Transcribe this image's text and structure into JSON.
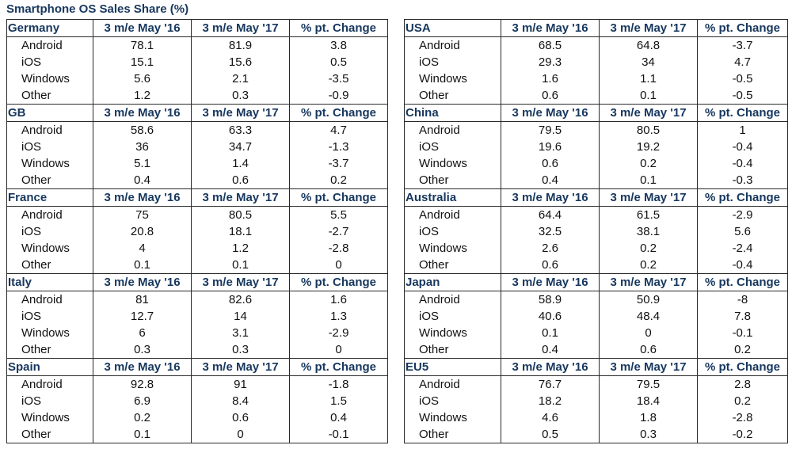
{
  "title": "Smartphone OS Sales Share (%)",
  "columns": [
    "3 m/e May '16",
    "3 m/e May '17",
    "% pt. Change"
  ],
  "left": [
    {
      "region": "Germany",
      "rows": [
        {
          "os": "Android",
          "v16": "78.1",
          "v17": "81.9",
          "chg": "3.8"
        },
        {
          "os": "iOS",
          "v16": "15.1",
          "v17": "15.6",
          "chg": "0.5"
        },
        {
          "os": "Windows",
          "v16": "5.6",
          "v17": "2.1",
          "chg": "-3.5"
        },
        {
          "os": "Other",
          "v16": "1.2",
          "v17": "0.3",
          "chg": "-0.9"
        }
      ]
    },
    {
      "region": "GB",
      "rows": [
        {
          "os": "Android",
          "v16": "58.6",
          "v17": "63.3",
          "chg": "4.7"
        },
        {
          "os": "iOS",
          "v16": "36",
          "v17": "34.7",
          "chg": "-1.3"
        },
        {
          "os": "Windows",
          "v16": "5.1",
          "v17": "1.4",
          "chg": "-3.7"
        },
        {
          "os": "Other",
          "v16": "0.4",
          "v17": "0.6",
          "chg": "0.2"
        }
      ]
    },
    {
      "region": "France",
      "rows": [
        {
          "os": "Android",
          "v16": "75",
          "v17": "80.5",
          "chg": "5.5"
        },
        {
          "os": "iOS",
          "v16": "20.8",
          "v17": "18.1",
          "chg": "-2.7"
        },
        {
          "os": "Windows",
          "v16": "4",
          "v17": "1.2",
          "chg": "-2.8"
        },
        {
          "os": "Other",
          "v16": "0.1",
          "v17": "0.1",
          "chg": "0"
        }
      ]
    },
    {
      "region": "Italy",
      "rows": [
        {
          "os": "Android",
          "v16": "81",
          "v17": "82.6",
          "chg": "1.6"
        },
        {
          "os": "iOS",
          "v16": "12.7",
          "v17": "14",
          "chg": "1.3"
        },
        {
          "os": "Windows",
          "v16": "6",
          "v17": "3.1",
          "chg": "-2.9"
        },
        {
          "os": "Other",
          "v16": "0.3",
          "v17": "0.3",
          "chg": "0"
        }
      ]
    },
    {
      "region": "Spain",
      "rows": [
        {
          "os": "Android",
          "v16": "92.8",
          "v17": "91",
          "chg": "-1.8"
        },
        {
          "os": "iOS",
          "v16": "6.9",
          "v17": "8.4",
          "chg": "1.5"
        },
        {
          "os": "Windows",
          "v16": "0.2",
          "v17": "0.6",
          "chg": "0.4"
        },
        {
          "os": "Other",
          "v16": "0.1",
          "v17": "0",
          "chg": "-0.1"
        }
      ]
    }
  ],
  "right": [
    {
      "region": "USA",
      "rows": [
        {
          "os": "Android",
          "v16": "68.5",
          "v17": "64.8",
          "chg": "-3.7"
        },
        {
          "os": "iOS",
          "v16": "29.3",
          "v17": "34",
          "chg": "4.7"
        },
        {
          "os": "Windows",
          "v16": "1.6",
          "v17": "1.1",
          "chg": "-0.5"
        },
        {
          "os": "Other",
          "v16": "0.6",
          "v17": "0.1",
          "chg": "-0.5"
        }
      ]
    },
    {
      "region": "China",
      "rows": [
        {
          "os": "Android",
          "v16": "79.5",
          "v17": "80.5",
          "chg": "1"
        },
        {
          "os": "iOS",
          "v16": "19.6",
          "v17": "19.2",
          "chg": "-0.4"
        },
        {
          "os": "Windows",
          "v16": "0.6",
          "v17": "0.2",
          "chg": "-0.4"
        },
        {
          "os": "Other",
          "v16": "0.4",
          "v17": "0.1",
          "chg": "-0.3"
        }
      ]
    },
    {
      "region": "Australia",
      "rows": [
        {
          "os": "Android",
          "v16": "64.4",
          "v17": "61.5",
          "chg": "-2.9"
        },
        {
          "os": "iOS",
          "v16": "32.5",
          "v17": "38.1",
          "chg": "5.6"
        },
        {
          "os": "Windows",
          "v16": "2.6",
          "v17": "0.2",
          "chg": "-2.4"
        },
        {
          "os": "Other",
          "v16": "0.6",
          "v17": "0.2",
          "chg": "-0.4"
        }
      ]
    },
    {
      "region": "Japan",
      "rows": [
        {
          "os": "Android",
          "v16": "58.9",
          "v17": "50.9",
          "chg": "-8"
        },
        {
          "os": "iOS",
          "v16": "40.6",
          "v17": "48.4",
          "chg": "7.8"
        },
        {
          "os": "Windows",
          "v16": "0.1",
          "v17": "0",
          "chg": "-0.1"
        },
        {
          "os": "Other",
          "v16": "0.4",
          "v17": "0.6",
          "chg": "0.2"
        }
      ]
    },
    {
      "region": "EU5",
      "rows": [
        {
          "os": "Android",
          "v16": "76.7",
          "v17": "79.5",
          "chg": "2.8"
        },
        {
          "os": "iOS",
          "v16": "18.2",
          "v17": "18.4",
          "chg": "0.2"
        },
        {
          "os": "Windows",
          "v16": "4.6",
          "v17": "1.8",
          "chg": "-2.8"
        },
        {
          "os": "Other",
          "v16": "0.5",
          "v17": "0.3",
          "chg": "-0.2"
        }
      ]
    }
  ]
}
